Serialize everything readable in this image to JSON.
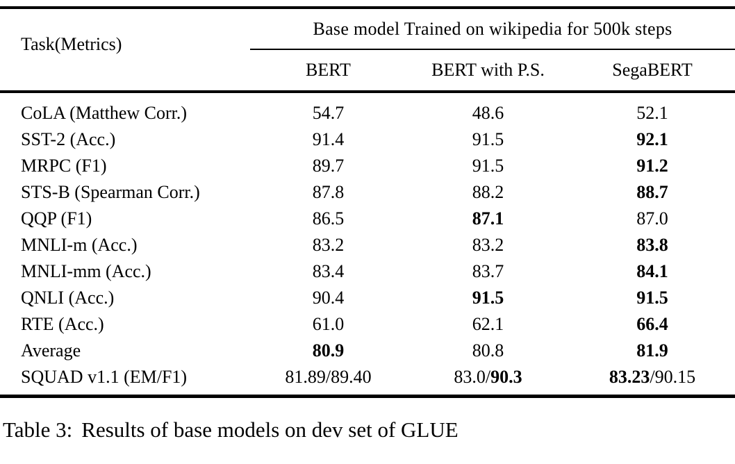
{
  "table": {
    "task_header": "Task(Metrics)",
    "group_header": "Base model Trained on wikipedia for 500k steps",
    "columns": [
      "BERT",
      "BERT with P.S.",
      "SegaBERT"
    ],
    "rows": [
      {
        "task": "CoLA (Matthew Corr.)",
        "cells": [
          [
            {
              "text": "54.7",
              "bold": false
            }
          ],
          [
            {
              "text": "48.6",
              "bold": false
            }
          ],
          [
            {
              "text": "52.1",
              "bold": false
            }
          ]
        ]
      },
      {
        "task": "SST-2 (Acc.)",
        "cells": [
          [
            {
              "text": "91.4",
              "bold": false
            }
          ],
          [
            {
              "text": "91.5",
              "bold": false
            }
          ],
          [
            {
              "text": "92.1",
              "bold": true
            }
          ]
        ]
      },
      {
        "task": "MRPC (F1)",
        "cells": [
          [
            {
              "text": "89.7",
              "bold": false
            }
          ],
          [
            {
              "text": "91.5",
              "bold": false
            }
          ],
          [
            {
              "text": "91.2",
              "bold": true
            }
          ]
        ]
      },
      {
        "task": "STS-B (Spearman Corr.)",
        "cells": [
          [
            {
              "text": "87.8",
              "bold": false
            }
          ],
          [
            {
              "text": "88.2",
              "bold": false
            }
          ],
          [
            {
              "text": "88.7",
              "bold": true
            }
          ]
        ]
      },
      {
        "task": "QQP (F1)",
        "cells": [
          [
            {
              "text": "86.5",
              "bold": false
            }
          ],
          [
            {
              "text": "87.1",
              "bold": true
            }
          ],
          [
            {
              "text": "87.0",
              "bold": false
            }
          ]
        ]
      },
      {
        "task": "MNLI-m (Acc.)",
        "cells": [
          [
            {
              "text": "83.2",
              "bold": false
            }
          ],
          [
            {
              "text": "83.2",
              "bold": false
            }
          ],
          [
            {
              "text": "83.8",
              "bold": true
            }
          ]
        ]
      },
      {
        "task": "MNLI-mm (Acc.)",
        "cells": [
          [
            {
              "text": "83.4",
              "bold": false
            }
          ],
          [
            {
              "text": "83.7",
              "bold": false
            }
          ],
          [
            {
              "text": "84.1",
              "bold": true
            }
          ]
        ]
      },
      {
        "task": "QNLI (Acc.)",
        "cells": [
          [
            {
              "text": "90.4",
              "bold": false
            }
          ],
          [
            {
              "text": "91.5",
              "bold": true
            }
          ],
          [
            {
              "text": "91.5",
              "bold": true
            }
          ]
        ]
      },
      {
        "task": "RTE (Acc.)",
        "cells": [
          [
            {
              "text": "61.0",
              "bold": false
            }
          ],
          [
            {
              "text": "62.1",
              "bold": false
            }
          ],
          [
            {
              "text": "66.4",
              "bold": true
            }
          ]
        ]
      },
      {
        "task": "Average",
        "cells": [
          [
            {
              "text": "80.9",
              "bold": true
            }
          ],
          [
            {
              "text": "80.8",
              "bold": false
            }
          ],
          [
            {
              "text": "81.9",
              "bold": true
            }
          ]
        ]
      },
      {
        "task": "SQUAD v1.1 (EM/F1)",
        "cells": [
          [
            {
              "text": "81.89/89.40",
              "bold": false
            }
          ],
          [
            {
              "text": "83.0/",
              "bold": false
            },
            {
              "text": "90.3",
              "bold": true
            }
          ],
          [
            {
              "text": "83.23",
              "bold": true
            },
            {
              "text": "/90.15",
              "bold": false
            }
          ]
        ]
      }
    ]
  },
  "caption": {
    "label": "Table 3:",
    "text": "Results of base models on dev set of GLUE"
  }
}
